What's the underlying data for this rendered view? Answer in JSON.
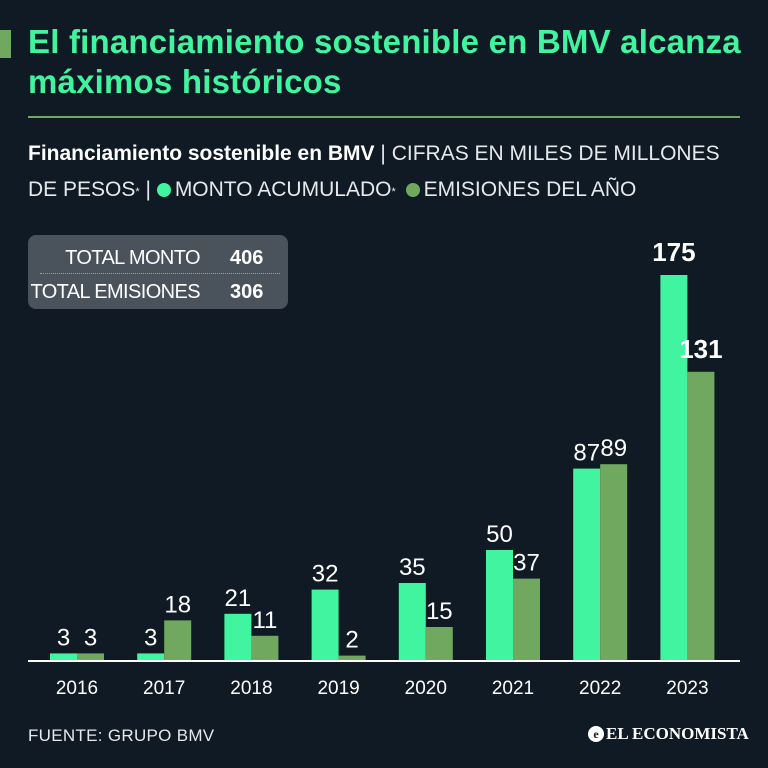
{
  "title": "El financiamiento sostenible en BMV alcanza máximos históricos",
  "subtitle": {
    "bold": "Financiamiento sostenible en BMV",
    "text1": "| CIFRAS EN MILES DE MILLONES DE PESOS",
    "sup1": "*",
    "sep": "|",
    "legend1": "MONTO ACUMULADO",
    "sup2": "*",
    "legend2": "EMISIONES DEL AÑO"
  },
  "totals": {
    "monto_label": "TOTAL MONTO",
    "monto_value": "406",
    "emisiones_label": "TOTAL EMISIONES",
    "emisiones_value": "306"
  },
  "colors": {
    "monto": "#41f5a0",
    "emisiones": "#6fa85e",
    "title": "#41f5a0",
    "background": "#0f1a24"
  },
  "chart_data": {
    "type": "bar",
    "categories": [
      "2016",
      "2017",
      "2018",
      "2019",
      "2020",
      "2021",
      "2022",
      "2023"
    ],
    "series": [
      {
        "name": "MONTO ACUMULADO",
        "values": [
          3,
          3,
          21,
          32,
          35,
          50,
          87,
          175
        ]
      },
      {
        "name": "EMISIONES DEL AÑO",
        "values": [
          3,
          18,
          11,
          2,
          15,
          37,
          89,
          131
        ]
      }
    ],
    "grid": false,
    "legend_placement": "top"
  },
  "source": "FUENTE: GRUPO BMV",
  "brand": "EL ECONOMISTA"
}
